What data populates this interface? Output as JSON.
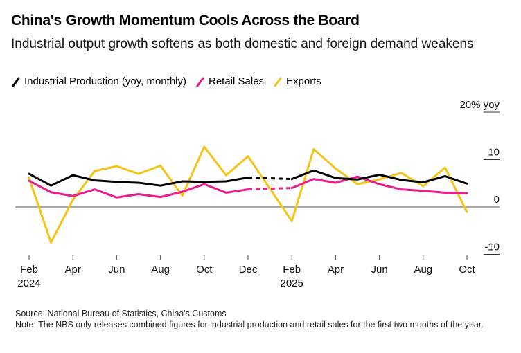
{
  "header": {
    "title": "China's Growth Momentum Cools Across the Board",
    "subtitle": "Industrial output growth softens as both domestic and foreign demand weakens"
  },
  "legend": [
    {
      "label": "Industrial Production (yoy, monthly)",
      "color": "#000000"
    },
    {
      "label": "Retail Sales",
      "color": "#EC1C8C"
    },
    {
      "label": "Exports",
      "color": "#F5C316"
    }
  ],
  "footer": {
    "source": "Source: National Bureau of Statistics, China's Customs",
    "note": "Note: The NBS only releases combined figures for industrial production and retail sales for the first two months of the year."
  },
  "chart_data": {
    "type": "line",
    "title": "China's Growth Momentum Cools Across the Board",
    "subtitle": "Industrial output growth softens as both domestic and foreign demand weakens",
    "xlabel": "",
    "ylabel": "% yoy",
    "ylim": [
      -10,
      20
    ],
    "yticks": [
      20,
      10,
      0,
      -10
    ],
    "ytick_labels": [
      "20% yoy",
      "10",
      "0",
      "-10"
    ],
    "y_axis_side": "right",
    "zero_line": true,
    "grid": false,
    "legend_position": "top-left",
    "x": [
      "2024-02",
      "2024-03",
      "2024-04",
      "2024-05",
      "2024-06",
      "2024-07",
      "2024-08",
      "2024-09",
      "2024-10",
      "2024-11",
      "2024-12",
      "2025-01",
      "2025-02",
      "2025-03",
      "2025-04",
      "2025-05",
      "2025-06",
      "2025-07",
      "2025-08",
      "2025-09",
      "2025-10"
    ],
    "xtick_labels": [
      {
        "month": "Feb",
        "year": "2024",
        "index": 0
      },
      {
        "month": "Apr",
        "year": "",
        "index": 2
      },
      {
        "month": "Jun",
        "year": "",
        "index": 4
      },
      {
        "month": "Aug",
        "year": "",
        "index": 6
      },
      {
        "month": "Oct",
        "year": "",
        "index": 8
      },
      {
        "month": "Dec",
        "year": "",
        "index": 10
      },
      {
        "month": "Feb",
        "year": "2025",
        "index": 12
      },
      {
        "month": "Apr",
        "year": "",
        "index": 14
      },
      {
        "month": "Jun",
        "year": "",
        "index": 16
      },
      {
        "month": "Aug",
        "year": "",
        "index": 18
      },
      {
        "month": "Oct",
        "year": "",
        "index": 20
      }
    ],
    "series": [
      {
        "name": "Industrial Production (yoy, monthly)",
        "color": "#000000",
        "gap_style": "dashed",
        "values": [
          7.0,
          4.5,
          6.7,
          5.6,
          5.3,
          5.1,
          4.5,
          5.4,
          5.3,
          5.4,
          6.2,
          null,
          5.9,
          7.7,
          6.1,
          5.8,
          6.8,
          5.7,
          5.2,
          6.5,
          4.9
        ]
      },
      {
        "name": "Retail Sales",
        "color": "#EC1C8C",
        "gap_style": "dashed",
        "values": [
          5.5,
          3.1,
          2.3,
          3.7,
          2.0,
          2.7,
          2.1,
          3.2,
          4.8,
          3.0,
          3.7,
          null,
          4.0,
          5.9,
          5.1,
          6.4,
          4.8,
          3.7,
          3.4,
          3.0,
          2.9
        ]
      },
      {
        "name": "Exports",
        "color": "#F5C316",
        "gap_style": "solid",
        "values": [
          6.1,
          -7.5,
          1.5,
          7.6,
          8.6,
          7.0,
          8.7,
          2.4,
          12.7,
          6.7,
          10.7,
          null,
          -3.0,
          12.2,
          8.1,
          4.8,
          5.8,
          7.2,
          4.4,
          8.3,
          -1.1
        ]
      }
    ]
  }
}
